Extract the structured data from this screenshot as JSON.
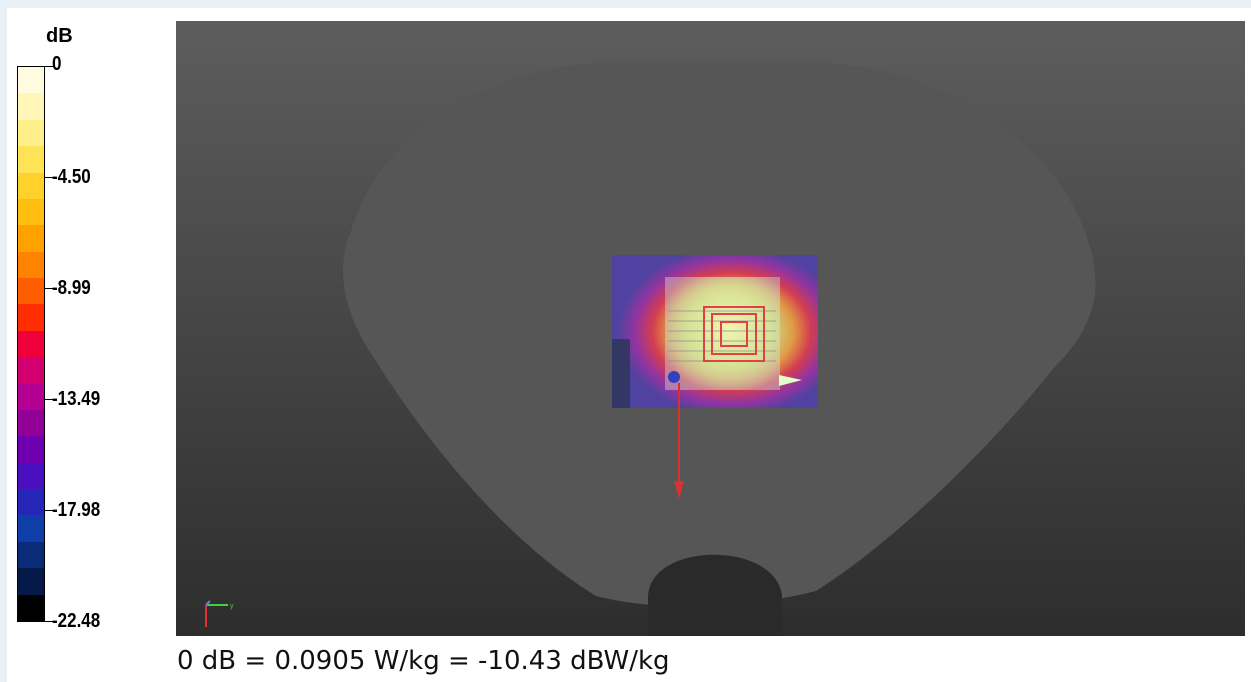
{
  "colorbar": {
    "unit": "dB",
    "tick_labels": [
      "0",
      "-4.50",
      "-8.99",
      "-13.49",
      "-17.98",
      "-22.48"
    ],
    "colors": [
      "#fffbe0",
      "#fff6b8",
      "#ffef8a",
      "#ffe356",
      "#ffd22b",
      "#ffbe10",
      "#ffa200",
      "#ff8300",
      "#ff5e00",
      "#ff2e00",
      "#f0003a",
      "#d2006e",
      "#b40092",
      "#920098",
      "#6e00b0",
      "#4a10c0",
      "#2526b8",
      "#103ea8",
      "#0a2c78",
      "#051a48",
      "#000000"
    ]
  },
  "viewport": {
    "colors": {
      "body_shape": "#565656",
      "notch": "#2a2a2a",
      "dut": "#c8c8c8",
      "red_lines": "#e0404a",
      "axis_red": "#d93030"
    }
  },
  "footer": {
    "text": "0 dB = 0.0905 W/kg = -10.43 dBW/kg"
  }
}
